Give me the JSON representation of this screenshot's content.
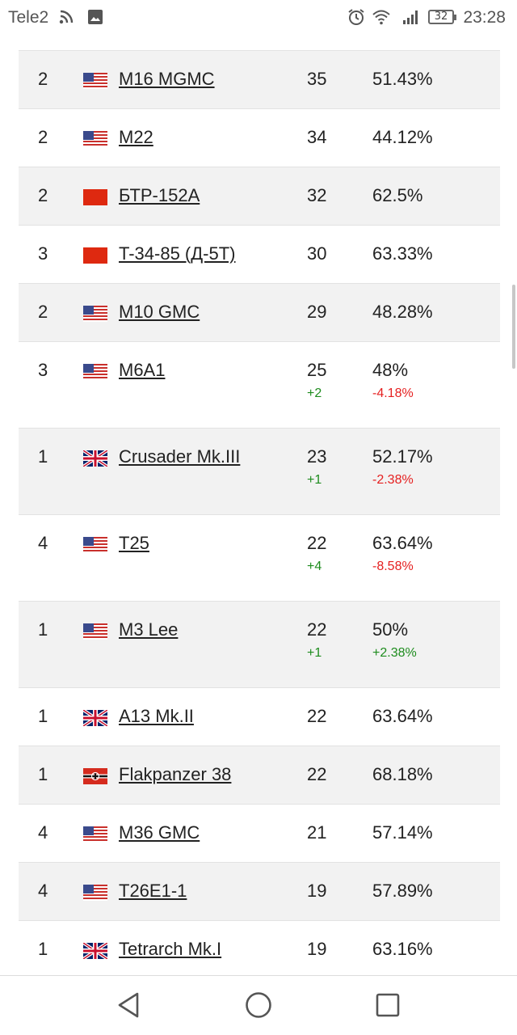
{
  "status_bar": {
    "carrier": "Tele2",
    "time": "23:28",
    "battery": "32",
    "icons": [
      "rss-icon",
      "image-icon",
      "alarm-icon",
      "wifi-icon",
      "signal-icon",
      "battery-icon"
    ]
  },
  "rows": [
    {
      "tier": "2",
      "flag": "usa",
      "name": "M16 MGMC",
      "battles": "35",
      "winrate": "51.43%"
    },
    {
      "tier": "2",
      "flag": "usa",
      "name": "M22",
      "battles": "34",
      "winrate": "44.12%"
    },
    {
      "tier": "2",
      "flag": "china",
      "name": "БТР-152A",
      "battles": "32",
      "winrate": "62.5%"
    },
    {
      "tier": "3",
      "flag": "china",
      "name": "T-34-85 (Д-5T)",
      "battles": "30",
      "winrate": "63.33%"
    },
    {
      "tier": "2",
      "flag": "usa",
      "name": "M10 GMC",
      "battles": "29",
      "winrate": "48.28%"
    },
    {
      "tier": "3",
      "flag": "usa",
      "name": "M6A1",
      "battles": "25",
      "battles_delta": "+2",
      "winrate": "48%",
      "winrate_delta": "-4.18%",
      "winrate_delta_color": "#e52020"
    },
    {
      "tier": "1",
      "flag": "uk",
      "name": "Crusader Mk.III",
      "battles": "23",
      "battles_delta": "+1",
      "winrate": "52.17%",
      "winrate_delta": "-2.38%",
      "winrate_delta_color": "#e52020"
    },
    {
      "tier": "4",
      "flag": "usa",
      "name": "T25",
      "battles": "22",
      "battles_delta": "+4",
      "winrate": "63.64%",
      "winrate_delta": "-8.58%",
      "winrate_delta_color": "#e52020"
    },
    {
      "tier": "1",
      "flag": "usa",
      "name": "M3 Lee",
      "battles": "22",
      "battles_delta": "+1",
      "winrate": "50%",
      "winrate_delta": "+2.38%",
      "winrate_delta_color": "#1e8c1e"
    },
    {
      "tier": "1",
      "flag": "uk",
      "name": "A13 Mk.II",
      "battles": "22",
      "winrate": "63.64%"
    },
    {
      "tier": "1",
      "flag": "germany",
      "name": "Flakpanzer 38",
      "battles": "22",
      "winrate": "68.18%"
    },
    {
      "tier": "4",
      "flag": "usa",
      "name": "M36 GMC",
      "battles": "21",
      "winrate": "57.14%"
    },
    {
      "tier": "4",
      "flag": "usa",
      "name": "T26E1-1",
      "battles": "19",
      "winrate": "57.89%"
    },
    {
      "tier": "1",
      "flag": "uk",
      "name": "Tetrarch Mk.I",
      "battles": "19",
      "winrate": "63.16%"
    }
  ],
  "nav_bar": {
    "buttons": [
      "back-icon",
      "home-icon",
      "recents-icon"
    ]
  }
}
